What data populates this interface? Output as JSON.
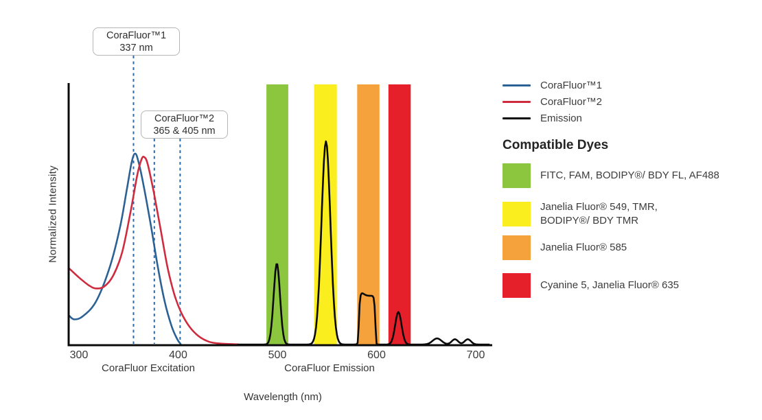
{
  "figure": {
    "y_axis_label": "Normalized Intensity",
    "x_axis_title": "Wavelength (nm)",
    "x_section_labels": {
      "excitation": "CoraFluor Excitation",
      "emission": "CoraFluor Emission"
    }
  },
  "annotations": [
    {
      "title": "CoraFluor™1",
      "subtitle": "337 nm",
      "lines_nm": [
        355
      ]
    },
    {
      "title": "CoraFluor™2",
      "subtitle": "365 & 405 nm",
      "lines_nm": [
        376,
        402
      ]
    }
  ],
  "legend": {
    "items": [
      {
        "label": "CoraFluor™1",
        "color": "#2B6194"
      },
      {
        "label": "CoraFluor™2",
        "color": "#CE2B3E"
      },
      {
        "label": "Emission",
        "color": "#0A0A0A"
      }
    ]
  },
  "compatible_dyes": {
    "heading": "Compatible Dyes",
    "items": [
      {
        "label": "FITC, FAM, BODIPY®/ BDY FL, AF488",
        "color": "#8CC63F"
      },
      {
        "label": "Janelia Fluor® 549, TMR,\nBODIPY®/ BDY TMR",
        "color": "#FBEE1E"
      },
      {
        "label": "Janelia Fluor® 585",
        "color": "#F6A23C"
      },
      {
        "label": "Cyanine 5, Janelia Fluor® 635",
        "color": "#E6202B"
      }
    ]
  },
  "chart_data": {
    "type": "line",
    "title": "CoraFluor excitation and emission spectra with compatible dye windows",
    "xlabel": "Wavelength (nm)",
    "ylabel": "Normalized Intensity",
    "x_ticks": [
      300,
      400,
      500,
      600,
      700
    ],
    "x_range_nm": [
      290,
      716
    ],
    "y_range": [
      0,
      1.28
    ],
    "grid": false,
    "legend_position": "right",
    "dashed_marker_color": "#2E6BA4",
    "axis_color": "#0A0A0A",
    "excitation_series": [
      {
        "name": "CoraFluor™1",
        "color": "#2B6194",
        "labeled_maxima_nm": "337 nm",
        "points": [
          [
            289.6,
            0.145
          ],
          [
            295,
            0.124
          ],
          [
            303.5,
            0.138
          ],
          [
            317,
            0.21
          ],
          [
            331,
            0.38
          ],
          [
            341.5,
            0.58
          ],
          [
            348.5,
            0.77
          ],
          [
            353.3,
            0.9
          ],
          [
            356.7,
            0.94
          ],
          [
            360,
            0.9
          ],
          [
            365.7,
            0.77
          ],
          [
            372.7,
            0.58
          ],
          [
            379.6,
            0.38
          ],
          [
            386.5,
            0.21
          ],
          [
            393.4,
            0.09
          ],
          [
            399,
            0.027
          ],
          [
            402.4,
            0.003
          ]
        ]
      },
      {
        "name": "CoraFluor™2",
        "color": "#CE2B3E",
        "labeled_maxima_nm": "365 & 405 nm",
        "points": [
          [
            289.6,
            0.377
          ],
          [
            300,
            0.33
          ],
          [
            310.4,
            0.29
          ],
          [
            317.3,
            0.276
          ],
          [
            325.6,
            0.286
          ],
          [
            334.6,
            0.34
          ],
          [
            343.6,
            0.455
          ],
          [
            351.9,
            0.65
          ],
          [
            358.8,
            0.835
          ],
          [
            363,
            0.91
          ],
          [
            365.7,
            0.923
          ],
          [
            369.2,
            0.89
          ],
          [
            375.4,
            0.75
          ],
          [
            382.4,
            0.565
          ],
          [
            389.3,
            0.38
          ],
          [
            396.2,
            0.246
          ],
          [
            403,
            0.158
          ],
          [
            411.4,
            0.088
          ],
          [
            421,
            0.04
          ],
          [
            431.5,
            0.013
          ],
          [
            442,
            0.005
          ],
          [
            460,
            0.001
          ]
        ]
      }
    ],
    "emission_series": {
      "name": "Emission",
      "color": "#0A0A0A",
      "range_nm": [
        460,
        714
      ],
      "peaks": [
        {
          "shape": "gauss",
          "center_nm": 499.5,
          "height": 0.4,
          "sigma_nm": 3.2
        },
        {
          "shape": "gauss",
          "center_nm": 549,
          "height": 1.0,
          "sigma_nm": 4.5
        },
        {
          "shape": "supergauss",
          "center_nm": 590.5,
          "height": 0.24,
          "width_nm": 8,
          "order": 6
        },
        {
          "shape": "gauss",
          "center_nm": 585,
          "height": 0.013,
          "sigma_nm": 2.5
        },
        {
          "shape": "gauss",
          "center_nm": 622,
          "height": 0.16,
          "sigma_nm": 3.2
        },
        {
          "shape": "gauss",
          "center_nm": 661,
          "height": 0.03,
          "sigma_nm": 4.5
        },
        {
          "shape": "gauss",
          "center_nm": 679,
          "height": 0.026,
          "sigma_nm": 3.2
        },
        {
          "shape": "gauss",
          "center_nm": 692,
          "height": 0.026,
          "sigma_nm": 3.2
        }
      ]
    },
    "dye_bands": [
      {
        "id": "green",
        "nm": [
          489,
          511
        ],
        "color": "#8CC63F",
        "dyes": "FITC, FAM, BODIPY®/ BDY FL, AF488"
      },
      {
        "id": "yellow",
        "nm": [
          537,
          560
        ],
        "color": "#FBEE1E",
        "dyes": "Janelia Fluor® 549, TMR, BODIPY®/ BDY TMR"
      },
      {
        "id": "orange",
        "nm": [
          580.5,
          603
        ],
        "color": "#F6A23C",
        "dyes": "Janelia Fluor® 585"
      },
      {
        "id": "red",
        "nm": [
          612,
          634.5
        ],
        "color": "#E6202B",
        "dyes": "Cyanine 5, Janelia Fluor® 635"
      }
    ]
  }
}
